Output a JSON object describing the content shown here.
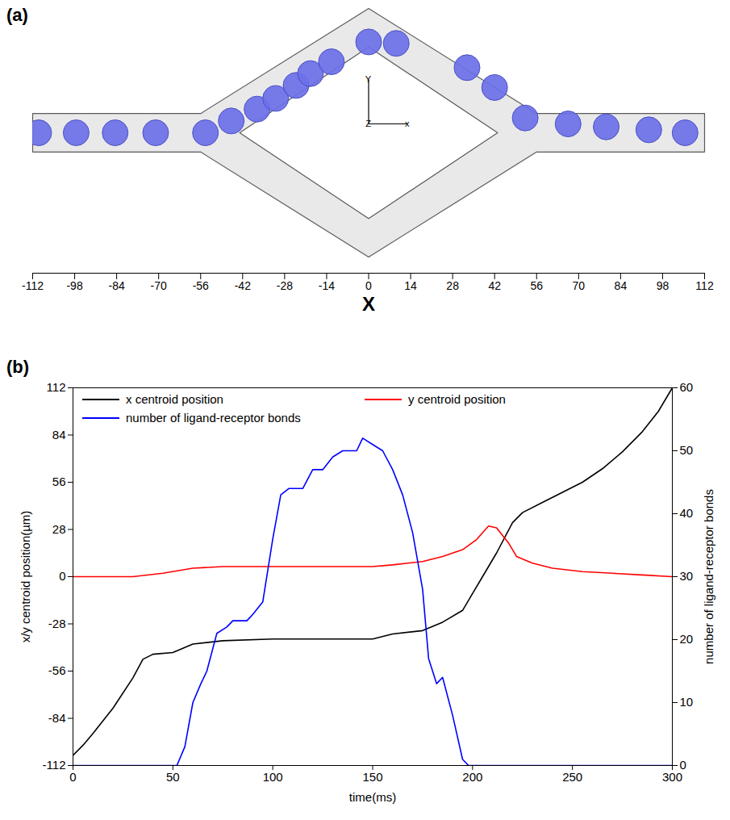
{
  "chart_data": [
    {
      "panel": "(a)",
      "type": "diagram",
      "xlabel": "X",
      "xlim": [
        -112,
        112
      ],
      "xticks": [
        -112,
        -98,
        -84,
        -70,
        -56,
        -42,
        -28,
        -14,
        0,
        14,
        28,
        42,
        56,
        70,
        84,
        98,
        112
      ],
      "ylim": [
        -42,
        42
      ],
      "tick_labels": "x",
      "color": "#6b70e8",
      "cells": {
        "x": [
          -110,
          -97.5,
          -84.5,
          -71,
          -54.4,
          -45.8,
          -37.2,
          -31,
          -24.2,
          -19.4,
          -12.4,
          0,
          9.2,
          32.8,
          42,
          52.2,
          66.5,
          79.2,
          93.4,
          105.5
        ],
        "y": [
          0,
          0,
          0,
          0,
          0,
          4,
          8,
          11.6,
          16,
          20,
          24,
          30.7,
          30.2,
          22,
          15.3,
          5,
          3,
          2,
          1,
          0
        ]
      },
      "channel": {
        "outer": [
          [
            -112,
            6.5
          ],
          [
            -56,
            6.5
          ],
          [
            0,
            42
          ],
          [
            56,
            6.5
          ],
          [
            112,
            6.5
          ],
          [
            112,
            -6.5
          ],
          [
            56,
            -6.5
          ],
          [
            0,
            -42
          ],
          [
            -56,
            -6.5
          ],
          [
            -112,
            -6.5
          ]
        ],
        "inner": [
          [
            -43,
            0
          ],
          [
            0,
            29
          ],
          [
            43,
            0
          ],
          [
            0,
            -29
          ]
        ]
      },
      "triad": {
        "origin": [
          0,
          3
        ],
        "x_end": 13,
        "y_end": 18,
        "labels": {
          "x": "x",
          "y": "Y",
          "z": "Z"
        }
      }
    },
    {
      "panel": "(b)",
      "type": "line",
      "xlabel": "time(ms)",
      "ylabel": "x/y centroid position(µm)",
      "y2label": "number of ligand-receptor bonds",
      "xlim": [
        0,
        300
      ],
      "xticks": [
        0,
        50,
        100,
        150,
        200,
        250,
        300
      ],
      "ylim": [
        -112,
        112
      ],
      "yticks": [
        -112,
        -84,
        -56,
        -28,
        0,
        28,
        56,
        84,
        112
      ],
      "y2lim": [
        0,
        60
      ],
      "y2ticks": [
        0,
        10,
        20,
        30,
        40,
        50,
        60
      ],
      "legend": "top",
      "series": [
        {
          "name": "x centroid position",
          "color": "#000000",
          "x": [
            0,
            5,
            10,
            20,
            30,
            35,
            40,
            50,
            60,
            75,
            100,
            150,
            160,
            175,
            185,
            195,
            200,
            205,
            212,
            220,
            225,
            235,
            245,
            255,
            265,
            275,
            285,
            293,
            300
          ],
          "values": [
            -106,
            -100,
            -93,
            -78,
            -60,
            -49,
            -46,
            -45,
            -40,
            -38,
            -37,
            -37,
            -34,
            -32,
            -27,
            -20,
            -10,
            0,
            14,
            32,
            38,
            44,
            50,
            56,
            64,
            74,
            86,
            98,
            112
          ]
        },
        {
          "name": "y centroid position",
          "color": "#ff0000",
          "x": [
            0,
            30,
            45,
            60,
            75,
            150,
            160,
            175,
            185,
            195,
            202,
            208,
            212,
            218,
            222,
            230,
            240,
            255,
            270,
            285,
            300
          ],
          "values": [
            0,
            0,
            2,
            5,
            6,
            6,
            7,
            9,
            12,
            16,
            22,
            30,
            29,
            20,
            12,
            8,
            5,
            3,
            2,
            1,
            0
          ]
        },
        {
          "name": "number of ligand-receptor bonds",
          "color": "#0000ff",
          "axis": "y2",
          "x": [
            0,
            52,
            56,
            60,
            64,
            67,
            72,
            77,
            80,
            87,
            90,
            95,
            100,
            104,
            108,
            115,
            120,
            125,
            130,
            135,
            142,
            145,
            150,
            155,
            160,
            165,
            170,
            175,
            178,
            182,
            185,
            190,
            195,
            198,
            300
          ],
          "values": [
            0,
            0,
            3,
            10,
            13,
            15,
            21,
            22,
            23,
            23,
            24,
            26,
            36,
            43,
            44,
            44,
            47,
            47,
            49,
            50,
            50,
            52,
            51,
            50,
            47,
            43,
            37,
            28,
            17,
            13,
            14,
            8,
            1,
            0,
            0
          ]
        }
      ]
    }
  ]
}
